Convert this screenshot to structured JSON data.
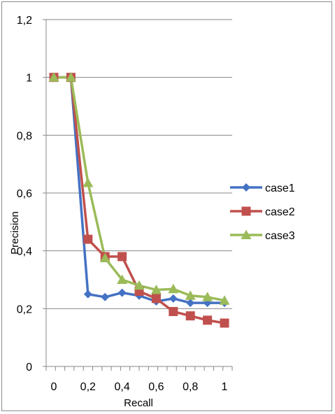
{
  "chart_data": {
    "type": "line",
    "title": "",
    "xlabel": "Recall",
    "ylabel": "Precision",
    "x": [
      0,
      0.1,
      0.2,
      0.3,
      0.4,
      0.5,
      0.6,
      0.7,
      0.8,
      0.9,
      1.0
    ],
    "xlim": [
      0,
      1
    ],
    "ylim": [
      0,
      1.2
    ],
    "x_tick_labels": [
      "0",
      "0,2",
      "0,4",
      "0,6",
      "0,8",
      "1"
    ],
    "x_tick_values": [
      0,
      0.2,
      0.4,
      0.6,
      0.8,
      1.0
    ],
    "y_tick_labels": [
      "0",
      "0,2",
      "0,4",
      "0,6",
      "0,8",
      "1",
      "1,2"
    ],
    "y_tick_values": [
      0,
      0.2,
      0.4,
      0.6,
      0.8,
      1.0,
      1.2
    ],
    "grid": "horizontal",
    "legend_position": "right",
    "series": [
      {
        "name": "case1",
        "color": "#4472C4",
        "marker": "diamond",
        "values": [
          1.0,
          1.0,
          0.25,
          0.24,
          0.255,
          0.245,
          0.225,
          0.235,
          0.22,
          0.22,
          0.22
        ]
      },
      {
        "name": "case2",
        "color": "#C0504D",
        "marker": "square",
        "values": [
          1.0,
          1.0,
          0.44,
          0.38,
          0.38,
          0.26,
          0.235,
          0.19,
          0.175,
          0.16,
          0.15
        ]
      },
      {
        "name": "case3",
        "color": "#9BBB59",
        "marker": "triangle",
        "values": [
          1.0,
          1.0,
          0.635,
          0.375,
          0.3,
          0.28,
          0.265,
          0.268,
          0.245,
          0.24,
          0.228
        ]
      }
    ]
  }
}
